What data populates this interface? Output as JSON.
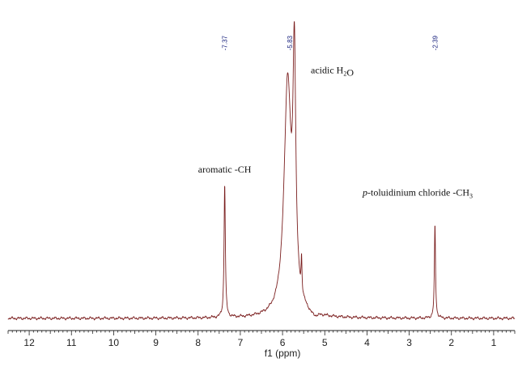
{
  "chart_data": {
    "type": "line",
    "xlabel": "f1 (ppm)",
    "xlim": [
      12.5,
      0.5
    ],
    "x_reversed": true,
    "x_ticks": [
      12,
      11,
      10,
      9,
      8,
      7,
      6,
      5,
      4,
      3,
      2,
      1
    ],
    "x_tick_labels": [
      "12",
      "11",
      "10",
      "9",
      "8",
      "7",
      "6",
      "5",
      "4",
      "3",
      "2",
      "1"
    ],
    "ylim": [
      0,
      1
    ],
    "line_color": "#7b1f1f",
    "peak_label_color": "#1a237e",
    "peak_labels": [
      {
        "x": 7.37,
        "text": "-7.37"
      },
      {
        "x": 5.83,
        "text": "-5.83"
      },
      {
        "x": 2.39,
        "text": "-2.39"
      }
    ],
    "peaks": [
      {
        "center": 7.37,
        "height": 0.43,
        "width": 0.018
      },
      {
        "center": 5.88,
        "height": 0.75,
        "width": 0.1
      },
      {
        "center": 5.72,
        "height": 0.75,
        "width": 0.04
      },
      {
        "center": 5.55,
        "height": 0.11,
        "width": 0.012
      },
      {
        "center": 2.39,
        "height": 0.3,
        "width": 0.016
      }
    ],
    "annotations": [
      {
        "id": "aromatic",
        "x": 7.37,
        "y": 0.47,
        "parts": [
          {
            "t": "aromatic -CH"
          }
        ]
      },
      {
        "id": "water",
        "x": 5.33,
        "y": 0.79,
        "parts": [
          {
            "t": "acidic H"
          },
          {
            "t": "2",
            "sub": true
          },
          {
            "t": "O"
          }
        ]
      },
      {
        "id": "toluidinium",
        "x": 2.8,
        "y": 0.395,
        "parts": [
          {
            "t": "p",
            "italic": true
          },
          {
            "t": "-toluidinium chloride -CH"
          },
          {
            "t": "3",
            "sub": true
          }
        ]
      }
    ]
  }
}
